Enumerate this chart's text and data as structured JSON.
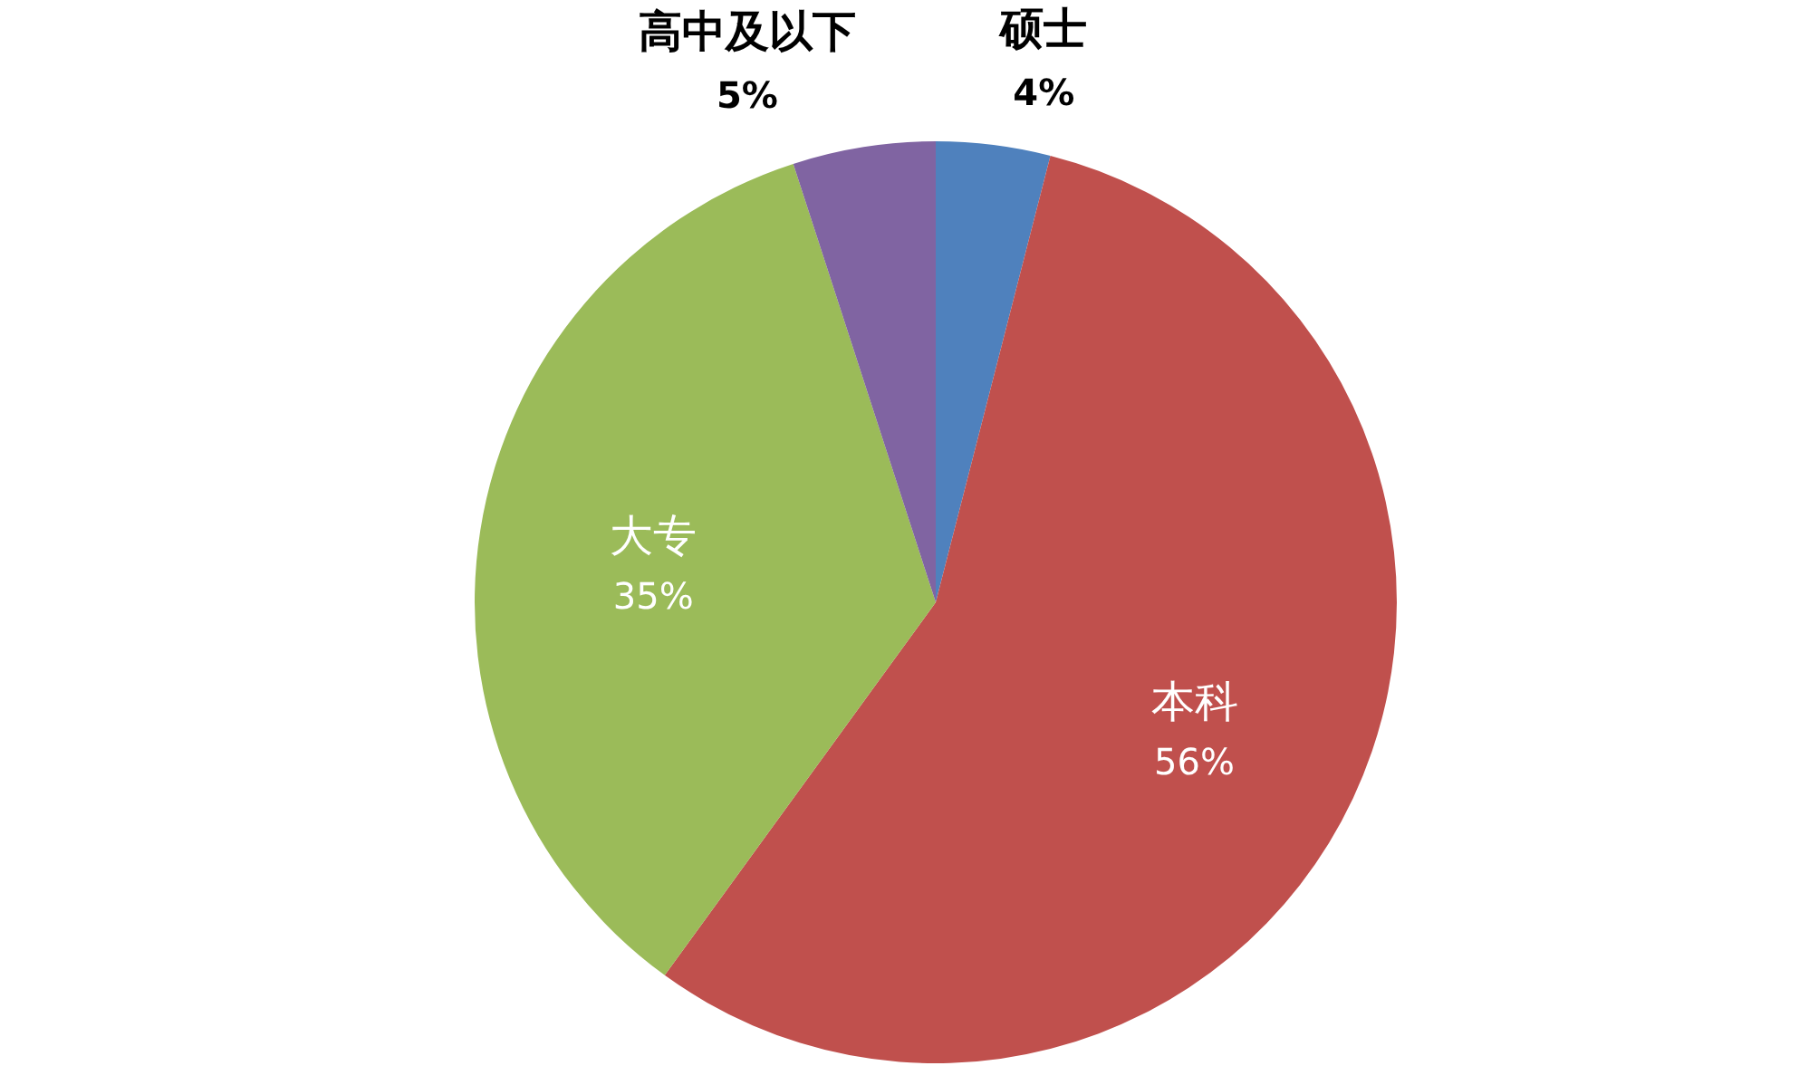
{
  "chart_data": {
    "type": "pie",
    "categories": [
      "硕士",
      "本科",
      "大专",
      "高中及以下"
    ],
    "values": [
      4,
      56,
      35,
      5
    ],
    "colors": [
      "#4f81bd",
      "#c0504d",
      "#9bbb59",
      "#8064a2"
    ],
    "value_labels": [
      "4%",
      "56%",
      "35%",
      "5%"
    ]
  }
}
